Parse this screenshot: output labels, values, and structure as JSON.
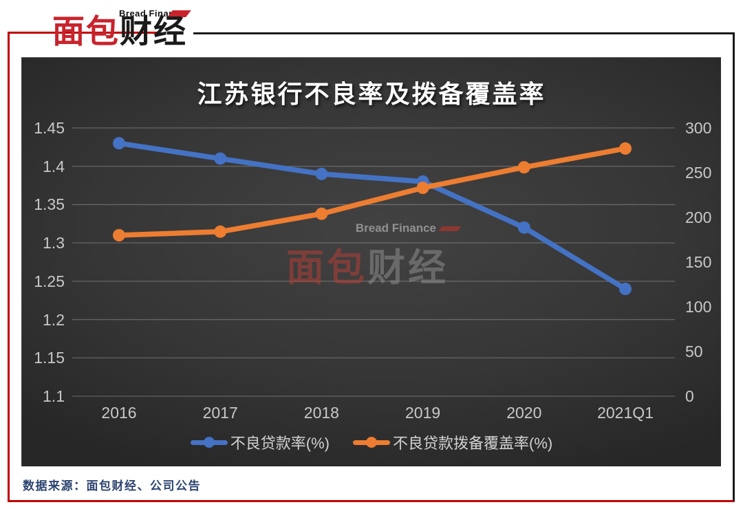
{
  "logo": {
    "brand_en": "Bread Finance",
    "brand_cn_red": "面包",
    "brand_cn_black": "财经"
  },
  "watermark": {
    "brand_en": "Bread Finance",
    "cn_red": "面包",
    "cn_gray": "财经"
  },
  "footer": {
    "source": "数据来源：面包财经、公司公告"
  },
  "colors": {
    "frame_red": "#C00000",
    "brand_red": "#C8242C",
    "series_blue": "#4472C4",
    "series_orange": "#ED7D31",
    "axis_text": "#c8c8c8",
    "gridline": "#7a7a7a"
  },
  "chart_data": {
    "type": "line",
    "title": "江苏银行不良率及拨备覆盖率",
    "categories": [
      "2016",
      "2017",
      "2018",
      "2019",
      "2020",
      "2021Q1"
    ],
    "series": [
      {
        "name": "不良贷款率(%)",
        "axis": "left",
        "color": "#4472C4",
        "values": [
          1.43,
          1.41,
          1.39,
          1.38,
          1.32,
          1.24
        ]
      },
      {
        "name": "不良贷款拨备覆盖率(%)",
        "axis": "right",
        "color": "#ED7D31",
        "values": [
          180,
          184,
          204,
          233,
          256,
          277
        ]
      }
    ],
    "left_axis": {
      "min": 1.1,
      "max": 1.45,
      "step": 0.05,
      "ticks": [
        "1.45",
        "1.4",
        "1.35",
        "1.3",
        "1.25",
        "1.2",
        "1.15",
        "1.1"
      ]
    },
    "right_axis": {
      "min": 0,
      "max": 300,
      "step": 50,
      "ticks": [
        "300",
        "250",
        "200",
        "150",
        "100",
        "50",
        "0"
      ]
    },
    "grid": true,
    "legend_position": "bottom"
  }
}
